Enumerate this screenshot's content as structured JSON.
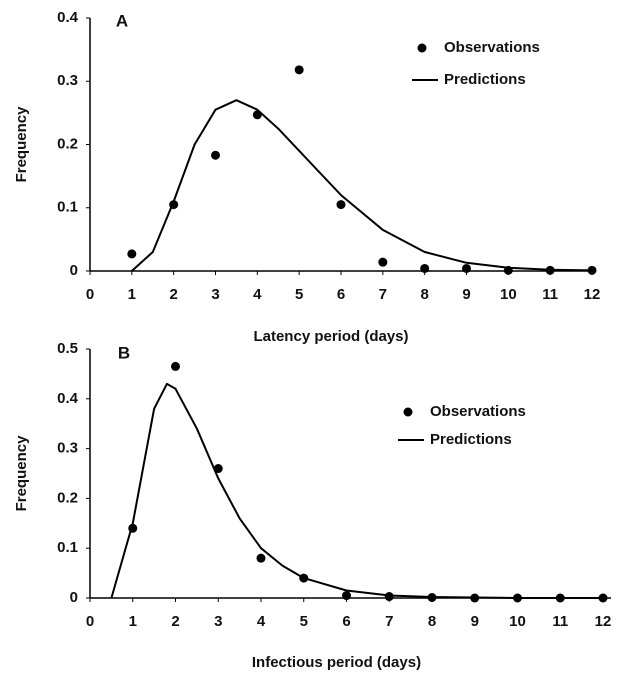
{
  "chart_data": [
    {
      "type": "line",
      "panel_label": "A",
      "xlabel": "Latency period (days)",
      "ylabel": "Frequency",
      "xlim": [
        0,
        12
      ],
      "xticks": [
        0,
        1,
        2,
        3,
        4,
        5,
        6,
        7,
        8,
        9,
        10,
        11,
        12
      ],
      "ylim": [
        0,
        0.4
      ],
      "yticks": [
        0,
        0.1,
        0.2,
        0.3,
        0.4
      ],
      "series": [
        {
          "name": "Observations",
          "mode": "markers",
          "color": "#000000",
          "x": [
            1,
            2,
            3,
            4,
            5,
            6,
            7,
            8,
            9,
            10,
            11,
            12
          ],
          "values": [
            0.027,
            0.105,
            0.183,
            0.247,
            0.318,
            0.105,
            0.014,
            0.004,
            0.004,
            0.001,
            0.001,
            0.001
          ]
        },
        {
          "name": "Predictions",
          "mode": "line",
          "color": "#000000",
          "x": [
            1,
            1.5,
            2,
            2.5,
            3,
            3.5,
            4,
            4.5,
            5,
            5.5,
            6,
            7,
            8,
            9,
            10,
            11,
            12
          ],
          "values": [
            0,
            0.03,
            0.11,
            0.2,
            0.255,
            0.27,
            0.255,
            0.225,
            0.19,
            0.155,
            0.12,
            0.065,
            0.03,
            0.013,
            0.005,
            0.002,
            0.001
          ]
        }
      ]
    },
    {
      "type": "line",
      "panel_label": "B",
      "xlabel": "Infectious period (days)",
      "ylabel": "Frequency",
      "xlim": [
        0,
        12
      ],
      "xticks": [
        0,
        1,
        2,
        3,
        4,
        5,
        6,
        7,
        8,
        9,
        10,
        11,
        12
      ],
      "ylim": [
        0,
        0.5
      ],
      "yticks": [
        0,
        0.1,
        0.2,
        0.3,
        0.4,
        0.5
      ],
      "series": [
        {
          "name": "Observations",
          "mode": "markers",
          "color": "#000000",
          "x": [
            1,
            2,
            3,
            4,
            5,
            6,
            7,
            8,
            9,
            10,
            11,
            12
          ],
          "values": [
            0.14,
            0.465,
            0.26,
            0.08,
            0.04,
            0.005,
            0.003,
            0.001,
            0,
            0,
            0,
            0
          ]
        },
        {
          "name": "Predictions",
          "mode": "line",
          "color": "#000000",
          "x": [
            0.5,
            1,
            1.5,
            1.8,
            2,
            2.5,
            3,
            3.5,
            4,
            4.5,
            5,
            6,
            7,
            8,
            9,
            10,
            11,
            12
          ],
          "values": [
            0,
            0.15,
            0.38,
            0.43,
            0.42,
            0.34,
            0.24,
            0.16,
            0.1,
            0.065,
            0.04,
            0.015,
            0.005,
            0.002,
            0.001,
            0,
            0,
            0
          ]
        }
      ]
    }
  ]
}
